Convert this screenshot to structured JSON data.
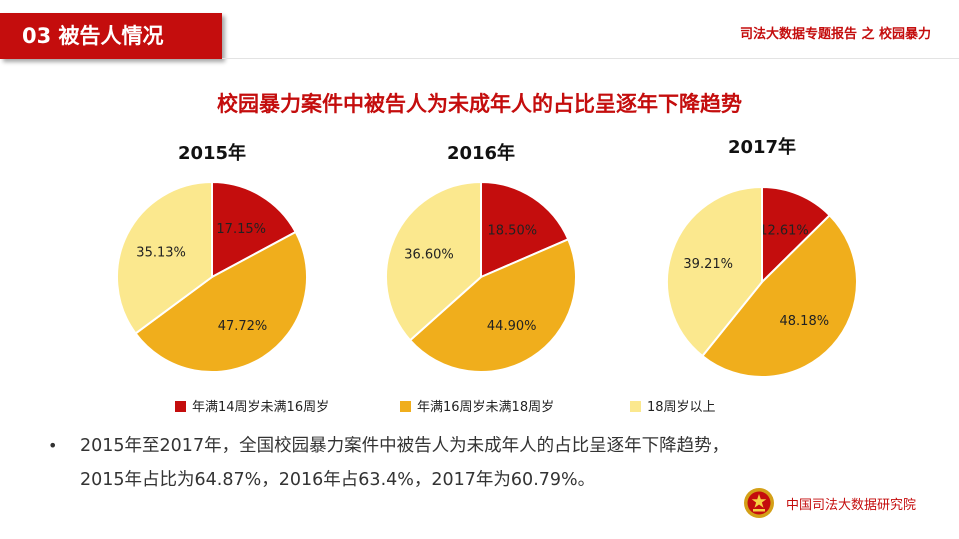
{
  "header": {
    "section_label": "03  被告人情况",
    "report_title": "司法大数据专题报告 之 校园暴力"
  },
  "main_title": "校园暴力案件中被告人为未成年人的占比呈逐年下降趋势",
  "colors": {
    "red": "#c40d0d",
    "orange": "#f0ae1c",
    "yellow": "#fbe88e"
  },
  "chart_data": [
    {
      "type": "pie",
      "title": "2015年",
      "categories": [
        "年满14周岁未满16周岁",
        "年满16周岁未满18周岁",
        "18周岁以上"
      ],
      "values": [
        17.15,
        47.72,
        35.13
      ],
      "labels": [
        "17.15%",
        "47.72%",
        "35.13%"
      ]
    },
    {
      "type": "pie",
      "title": "2016年",
      "categories": [
        "年满14周岁未满16周岁",
        "年满16周岁未满18周岁",
        "18周岁以上"
      ],
      "values": [
        18.5,
        44.9,
        36.6
      ],
      "labels": [
        "18.50%",
        "44.90%",
        "36.60%"
      ]
    },
    {
      "type": "pie",
      "title": "2017年",
      "categories": [
        "年满14周岁未满16周岁",
        "年满16周岁未满18周岁",
        "18周岁以上"
      ],
      "values": [
        12.61,
        48.18,
        39.21
      ],
      "labels": [
        "12.61%",
        "48.18%",
        "39.21%"
      ]
    }
  ],
  "legend": [
    {
      "label": "年满14周岁未满16周岁",
      "color": "#c40d0d"
    },
    {
      "label": "年满16周岁未满18周岁",
      "color": "#f0ae1c"
    },
    {
      "label": "18周岁以上",
      "color": "#fbe88e"
    }
  ],
  "bullet": {
    "marker": "•",
    "line1": "2015年至2017年，全国校园暴力案件中被告人为未成年人的占比呈逐年下降趋势，",
    "line2": "2015年占比为64.87%，2016年占63.4%，2017年为60.79%。"
  },
  "footer": {
    "org_name": "中国司法大数据研究院",
    "emblem_icon": "national-emblem-icon"
  }
}
